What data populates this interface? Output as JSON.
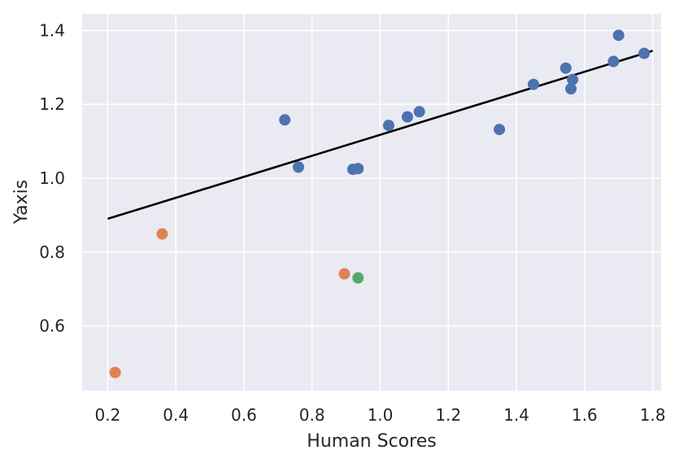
{
  "chart_data": {
    "type": "scatter",
    "title": "",
    "xlabel": "Human Scores",
    "ylabel": "Yaxis",
    "xlim": [
      0.125,
      1.825
    ],
    "ylim": [
      0.425,
      1.445
    ],
    "x_ticks": [
      0.2,
      0.4,
      0.6,
      0.8,
      1.0,
      1.2,
      1.4,
      1.6,
      1.8
    ],
    "x_tick_labels": [
      "0.2",
      "0.4",
      "0.6",
      "0.8",
      "1.0",
      "1.2",
      "1.4",
      "1.6",
      "1.8"
    ],
    "y_ticks": [
      0.6,
      0.8,
      1.0,
      1.2,
      1.4
    ],
    "y_tick_labels": [
      "0.6",
      "0.8",
      "1.0",
      "1.2",
      "1.4"
    ],
    "grid": true,
    "background_color": "#eaeaf2",
    "grid_color": "#ffffff",
    "series": [
      {
        "color": "#4c72b0",
        "points": [
          {
            "x": 0.72,
            "y": 1.158
          },
          {
            "x": 0.76,
            "y": 1.03
          },
          {
            "x": 0.92,
            "y": 1.024
          },
          {
            "x": 0.935,
            "y": 1.026
          },
          {
            "x": 1.025,
            "y": 1.143
          },
          {
            "x": 1.08,
            "y": 1.166
          },
          {
            "x": 1.115,
            "y": 1.18
          },
          {
            "x": 1.35,
            "y": 1.132
          },
          {
            "x": 1.45,
            "y": 1.254
          },
          {
            "x": 1.545,
            "y": 1.298
          },
          {
            "x": 1.56,
            "y": 1.242
          },
          {
            "x": 1.565,
            "y": 1.267
          },
          {
            "x": 1.685,
            "y": 1.316
          },
          {
            "x": 1.7,
            "y": 1.387
          },
          {
            "x": 1.775,
            "y": 1.338
          }
        ]
      },
      {
        "color": "#dd8452",
        "points": [
          {
            "x": 0.222,
            "y": 0.474
          },
          {
            "x": 0.36,
            "y": 0.849
          },
          {
            "x": 0.895,
            "y": 0.741
          }
        ]
      },
      {
        "color": "#55a868",
        "points": [
          {
            "x": 0.935,
            "y": 0.73
          }
        ]
      }
    ],
    "trend_line": {
      "color": "#000000",
      "x": [
        0.2,
        1.8
      ],
      "y": [
        0.89,
        1.345
      ]
    }
  }
}
